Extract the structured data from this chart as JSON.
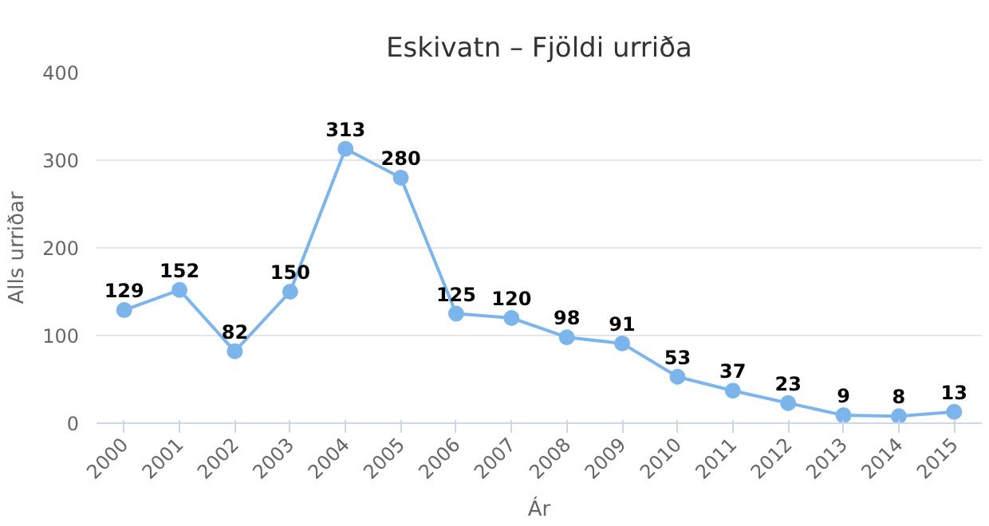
{
  "chart_data": {
    "type": "line",
    "title": "Eskivatn – Fjöldi urriða",
    "xlabel": "Ár",
    "ylabel": "Alls urriðar",
    "categories": [
      "2000",
      "2001",
      "2002",
      "2003",
      "2004",
      "2005",
      "2006",
      "2007",
      "2008",
      "2009",
      "2010",
      "2011",
      "2012",
      "2013",
      "2014",
      "2015"
    ],
    "series": [
      {
        "color": "#7cb5ec",
        "values": [
          129,
          152,
          82,
          150,
          313,
          280,
          125,
          120,
          98,
          91,
          53,
          37,
          23,
          9,
          8,
          13
        ]
      }
    ],
    "ylim": [
      0,
      400
    ],
    "yticks": [
      0,
      100,
      200,
      300,
      400
    ],
    "grid": "y",
    "marker": "circle",
    "line_style": "solid",
    "data_labels": true
  }
}
